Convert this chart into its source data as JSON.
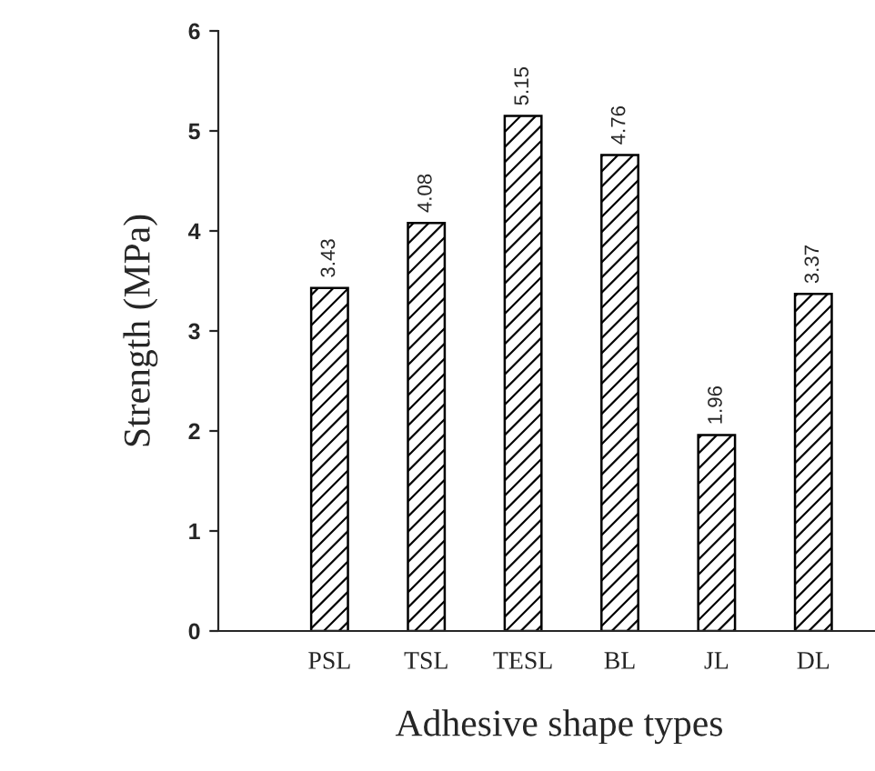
{
  "chart_data": {
    "type": "bar",
    "xlabel": "Adhesive shape types",
    "ylabel": "Strength (MPa)",
    "categories": [
      "PSL",
      "TSL",
      "TESL",
      "BL",
      "JL",
      "DL"
    ],
    "values": [
      3.43,
      4.08,
      5.15,
      4.76,
      1.96,
      3.37
    ],
    "color": "#000000",
    "ylim": [
      0,
      6
    ],
    "yticks": [
      0,
      1,
      2,
      3,
      4,
      5,
      6
    ],
    "grid": false,
    "data_labels": true
  }
}
